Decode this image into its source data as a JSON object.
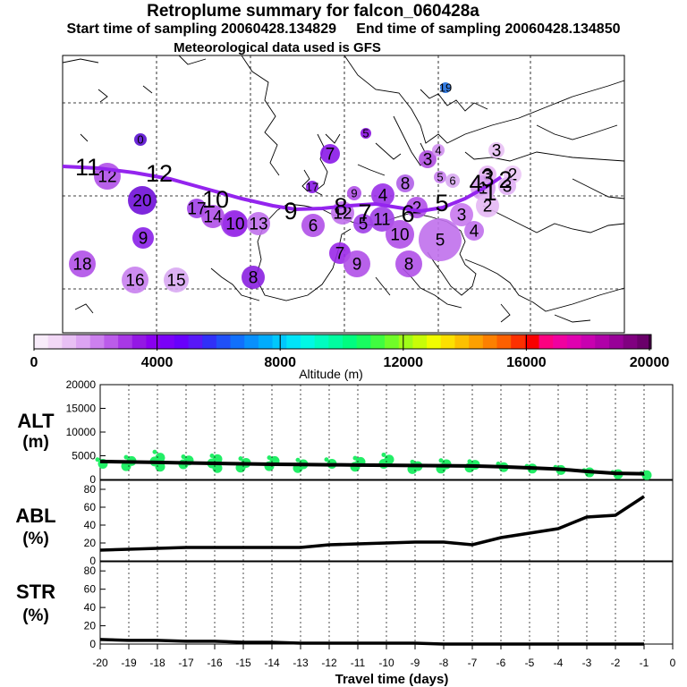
{
  "header": {
    "title": "Retroplume summary for falcon_060428a",
    "start_label": "Start time of sampling 20060428.134829",
    "end_label": "End time of sampling 20060428.134850",
    "met_label": "Meteorological data used is GFS"
  },
  "map": {
    "plume_labels": [
      "11",
      "12",
      "10",
      "9",
      "8",
      "7",
      "6",
      "5",
      "4",
      "3",
      "2",
      "1"
    ],
    "cluster_labels": [
      {
        "t": "19",
        "c": "#1f6fe0",
        "r": 6
      },
      {
        "t": "0",
        "c": "#5a10d0",
        "r": 7
      },
      {
        "t": "5",
        "c": "#8a10e0",
        "r": 6
      },
      {
        "t": "7",
        "c": "#8a18e8",
        "r": 11
      },
      {
        "t": "3",
        "c": "#b050e0",
        "r": 10
      },
      {
        "t": "4",
        "c": "#d090f0",
        "r": 7
      },
      {
        "t": "3",
        "c": "#e8c0f4",
        "r": 9
      },
      {
        "t": "3",
        "c": "#e6b4f4",
        "r": 10
      },
      {
        "t": "2",
        "c": "#ecc8f6",
        "r": 10
      },
      {
        "t": "5",
        "c": "#c880ee",
        "r": 7
      },
      {
        "t": "6",
        "c": "#d8a8f2",
        "r": 8
      },
      {
        "t": "3",
        "c": "#e0b0f4",
        "r": 10
      },
      {
        "t": "1",
        "c": "#d8a0f2",
        "r": 14
      },
      {
        "t": "2",
        "c": "#e4b8f4",
        "r": 13
      },
      {
        "t": "8",
        "c": "#b060e8",
        "r": 10
      },
      {
        "t": "4",
        "c": "#9a30e8",
        "r": 13
      },
      {
        "t": "9",
        "c": "#b050e8",
        "r": 8
      },
      {
        "t": "17",
        "c": "#8a18e8",
        "r": 7
      },
      {
        "t": "20",
        "c": "#7010d8",
        "r": 16
      },
      {
        "t": "12",
        "c": "#b050e8",
        "r": 15
      },
      {
        "t": "10",
        "c": "#9a30e8",
        "r": 15
      },
      {
        "t": "9",
        "c": "#8a20e8",
        "r": 12
      },
      {
        "t": "18",
        "c": "#b050e8",
        "r": 15
      },
      {
        "t": "16",
        "c": "#c880ee",
        "r": 15
      },
      {
        "t": "15",
        "c": "#d8a8f2",
        "r": 14
      },
      {
        "t": "8",
        "c": "#8a20e0",
        "r": 13
      },
      {
        "t": "17",
        "c": "#a040e8",
        "r": 11
      },
      {
        "t": "14",
        "c": "#b050e8",
        "r": 13
      },
      {
        "t": "10",
        "c": "#9a30e8",
        "r": 14
      },
      {
        "t": "13",
        "c": "#c070ec",
        "r": 13
      },
      {
        "t": "6",
        "c": "#b050e8",
        "r": 13
      },
      {
        "t": "12",
        "c": "#c070ec",
        "r": 13
      },
      {
        "t": "5",
        "c": "#a040e8",
        "r": 11
      },
      {
        "t": "11",
        "c": "#a040e8",
        "r": 14
      },
      {
        "t": "3",
        "c": "#c878ee",
        "r": 13
      },
      {
        "t": "2",
        "c": "#b050e8",
        "r": 12
      },
      {
        "t": "4",
        "c": "#c070ec",
        "r": 11
      },
      {
        "t": "10",
        "c": "#b050e8",
        "r": 16
      },
      {
        "t": "5",
        "c": "#c070ec",
        "r": 24
      },
      {
        "t": "7",
        "c": "#9a28e8",
        "r": 12
      },
      {
        "t": "9",
        "c": "#b050e8",
        "r": 15
      },
      {
        "t": "8",
        "c": "#b050e8",
        "r": 15
      }
    ]
  },
  "colorbar": {
    "colors": [
      "#f8ecfa",
      "#f2d8f6",
      "#e8c0f4",
      "#dca4f2",
      "#cc80ee",
      "#bb5cea",
      "#a838e6",
      "#9418e4",
      "#8a00f0",
      "#7a00f8",
      "#6800fc",
      "#5818f8",
      "#3030f8",
      "#2050f8",
      "#1070fc",
      "#0890fc",
      "#00acfc",
      "#00c8fc",
      "#00e4f8",
      "#00f8e4",
      "#00fcc0",
      "#00fca0",
      "#00fc80",
      "#18fc60",
      "#40fc40",
      "#70fc28",
      "#a0fc18",
      "#c8fc08",
      "#f0fc00",
      "#fce000",
      "#fcc000",
      "#fca000",
      "#fc8000",
      "#fc6000",
      "#fc3000",
      "#f80000",
      "#fc0080",
      "#f000a0",
      "#e000b0",
      "#c800b0",
      "#b000a8",
      "#980098",
      "#800080",
      "#6a006a"
    ],
    "ticks": [
      "0",
      "4000",
      "8000",
      "12000",
      "16000",
      "20000"
    ],
    "label": "Altitude (m)"
  },
  "panels": {
    "alt": {
      "label_top": "ALT",
      "label_bottom": "(m)",
      "ticks": [
        "0",
        "5000",
        "10000",
        "15000",
        "20000"
      ]
    },
    "abl": {
      "label_top": "ABL",
      "label_bottom": "(%)",
      "ticks": [
        "0",
        "20",
        "40",
        "60",
        "80"
      ]
    },
    "str": {
      "label_top": "STR",
      "label_bottom": "(%)",
      "ticks": [
        "0",
        "20",
        "40",
        "60",
        "80"
      ]
    }
  },
  "xaxis": {
    "ticks": [
      "-20",
      "-19",
      "-18",
      "-17",
      "-16",
      "-15",
      "-14",
      "-13",
      "-12",
      "-11",
      "-10",
      "-9",
      "-8",
      "-7",
      "-6",
      "-5",
      "-4",
      "-3",
      "-2",
      "-1",
      "0"
    ],
    "label": "Travel time (days)"
  },
  "chart_data": {
    "type": "line",
    "title": "Retroplume summary for falcon_060428a",
    "xlabel": "Travel time (days)",
    "x": [
      -20,
      -19,
      -18,
      -17,
      -16,
      -15,
      -14,
      -13,
      -12,
      -11,
      -10,
      -9,
      -8,
      -7,
      -6,
      -5,
      -4,
      -3,
      -2,
      -1
    ],
    "xlim": [
      -20,
      0
    ],
    "series": [
      {
        "name": "ALT (m)",
        "ylim": [
          0,
          20000
        ],
        "values": [
          3800,
          3700,
          3600,
          3500,
          3400,
          3300,
          3200,
          3150,
          3100,
          3050,
          3000,
          2950,
          2900,
          2850,
          2700,
          2450,
          2200,
          1700,
          1300,
          1200
        ]
      },
      {
        "name": "ABL (%)",
        "ylim": [
          0,
          90
        ],
        "values": [
          12,
          13,
          14,
          15,
          15,
          15,
          15,
          15,
          18,
          19,
          20,
          21,
          21,
          18,
          26,
          31,
          36,
          49,
          51,
          72
        ]
      },
      {
        "name": "STR (%)",
        "ylim": [
          0,
          90
        ],
        "values": [
          5,
          4,
          4,
          3,
          3,
          2,
          2,
          1,
          1,
          1,
          1,
          1,
          0,
          0,
          0,
          0,
          0,
          0,
          0,
          0
        ]
      }
    ],
    "alt_cluster_points": [
      {
        "x": -20,
        "v": [
          4200,
          3300
        ]
      },
      {
        "x": -19,
        "v": [
          4700,
          3900,
          2800
        ]
      },
      {
        "x": -18,
        "v": [
          5800,
          4600,
          3800,
          2700
        ]
      },
      {
        "x": -17,
        "v": [
          4800,
          4000,
          3200
        ]
      },
      {
        "x": -16,
        "v": [
          5000,
          4300,
          3400,
          2400
        ]
      },
      {
        "x": -15,
        "v": [
          4400,
          3500,
          2500
        ]
      },
      {
        "x": -14,
        "v": [
          4600,
          3900,
          2800
        ]
      },
      {
        "x": -13,
        "v": [
          4100,
          3200,
          2400
        ]
      },
      {
        "x": -12,
        "v": [
          4200,
          3300
        ]
      },
      {
        "x": -11,
        "v": [
          4500,
          3700,
          2700
        ]
      },
      {
        "x": -10,
        "v": [
          5200,
          4200,
          3300
        ]
      },
      {
        "x": -9,
        "v": [
          3700,
          2800,
          2200
        ]
      },
      {
        "x": -8,
        "v": [
          4000,
          3200,
          2300
        ]
      },
      {
        "x": -7,
        "v": [
          3800,
          3100,
          2500
        ]
      },
      {
        "x": -6,
        "v": [
          3300,
          2600
        ]
      },
      {
        "x": -5,
        "v": [
          2800,
          2300
        ]
      },
      {
        "x": -4,
        "v": [
          2600,
          2000
        ]
      },
      {
        "x": -3,
        "v": [
          1900,
          1500
        ]
      },
      {
        "x": -2,
        "v": [
          1500,
          1100
        ]
      },
      {
        "x": -1,
        "v": [
          1300,
          900
        ]
      }
    ],
    "colorbar": {
      "label": "Altitude (m)",
      "range": [
        0,
        20000
      ]
    }
  }
}
